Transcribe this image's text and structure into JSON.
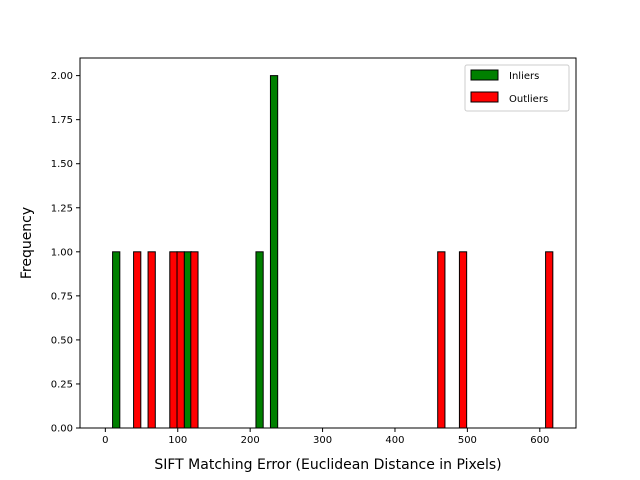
{
  "chart_data": {
    "type": "bar",
    "title": "",
    "xlabel": "SIFT Matching Error (Euclidean Distance in Pixels)",
    "ylabel": "Frequency",
    "xlim": [
      -35,
      650
    ],
    "ylim": [
      0,
      2.1
    ],
    "xticks": [
      0,
      100,
      200,
      300,
      400,
      500,
      600
    ],
    "yticks": [
      0.0,
      0.25,
      0.5,
      0.75,
      1.0,
      1.25,
      1.5,
      1.75,
      2.0
    ],
    "ytick_labels": [
      "0.00",
      "0.25",
      "0.50",
      "0.75",
      "1.00",
      "1.25",
      "1.50",
      "1.75",
      "2.00"
    ],
    "bar_width": 10,
    "legend_position": "top-right",
    "grid": false,
    "series": [
      {
        "name": "Inliers",
        "color": "#008000",
        "bars": [
          {
            "x": 15,
            "value": 1
          },
          {
            "x": 114,
            "value": 1
          },
          {
            "x": 213,
            "value": 1
          },
          {
            "x": 233,
            "value": 2
          }
        ]
      },
      {
        "name": "Outliers",
        "color": "#ff0000",
        "bars": [
          {
            "x": 44,
            "value": 1
          },
          {
            "x": 64,
            "value": 1
          },
          {
            "x": 94,
            "value": 1
          },
          {
            "x": 104,
            "value": 1
          },
          {
            "x": 123,
            "value": 1
          },
          {
            "x": 464,
            "value": 1
          },
          {
            "x": 494,
            "value": 1
          },
          {
            "x": 613,
            "value": 1
          }
        ]
      }
    ]
  }
}
